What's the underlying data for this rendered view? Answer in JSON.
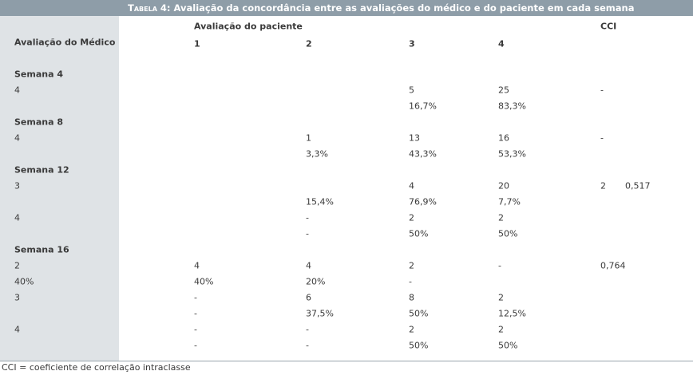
{
  "title_label": "Tabela 4:",
  "title": "Avaliação da concordância entre as avaliações do médico e do paciente em cada semana",
  "header": {
    "group": "Avaliação do paciente",
    "cci": "CCI",
    "row_label": "Avaliação do Médico",
    "columns": [
      "1",
      "2",
      "3",
      "4"
    ]
  },
  "rows": [
    {
      "section": "Semana 4"
    },
    {
      "cells": [
        "4",
        null,
        null,
        "5",
        "25",
        "-",
        null
      ]
    },
    {
      "cells": [
        null,
        null,
        null,
        "16,7%",
        "83,3%",
        null,
        null
      ]
    },
    {
      "section": "Semana 8"
    },
    {
      "cells": [
        "4",
        null,
        "1",
        "13",
        "16",
        "-",
        null
      ]
    },
    {
      "cells": [
        null,
        null,
        "3,3%",
        "43,3%",
        "53,3%",
        null,
        null
      ]
    },
    {
      "section": "Semana 12"
    },
    {
      "cells": [
        "3",
        null,
        null,
        "4",
        "20",
        "2",
        "0,517"
      ]
    },
    {
      "cells": [
        null,
        null,
        "15,4%",
        "76,9%",
        "7,7%",
        null,
        null
      ]
    },
    {
      "cells": [
        "4",
        null,
        "-",
        "2",
        "2",
        null,
        null
      ]
    },
    {
      "cells": [
        null,
        null,
        "-",
        "50%",
        "50%",
        null,
        null
      ]
    },
    {
      "section": "Semana 16"
    },
    {
      "cells": [
        "2",
        "4",
        "4",
        "2",
        "-",
        "0,764",
        null
      ]
    },
    {
      "cells": [
        "40%",
        "40%",
        "20%",
        "-",
        null,
        null,
        null
      ]
    },
    {
      "cells": [
        "3",
        "-",
        "6",
        "8",
        "2",
        null,
        null
      ]
    },
    {
      "cells": [
        null,
        "-",
        "37,5%",
        "50%",
        "12,5%",
        null,
        null
      ]
    },
    {
      "cells": [
        "4",
        "-",
        "-",
        "2",
        "2",
        null,
        null
      ]
    },
    {
      "cells": [
        null,
        "-",
        "-",
        "50%",
        "50%",
        null,
        null
      ]
    }
  ],
  "footnote": "CCI = coeficiente de correlação intraclasse"
}
